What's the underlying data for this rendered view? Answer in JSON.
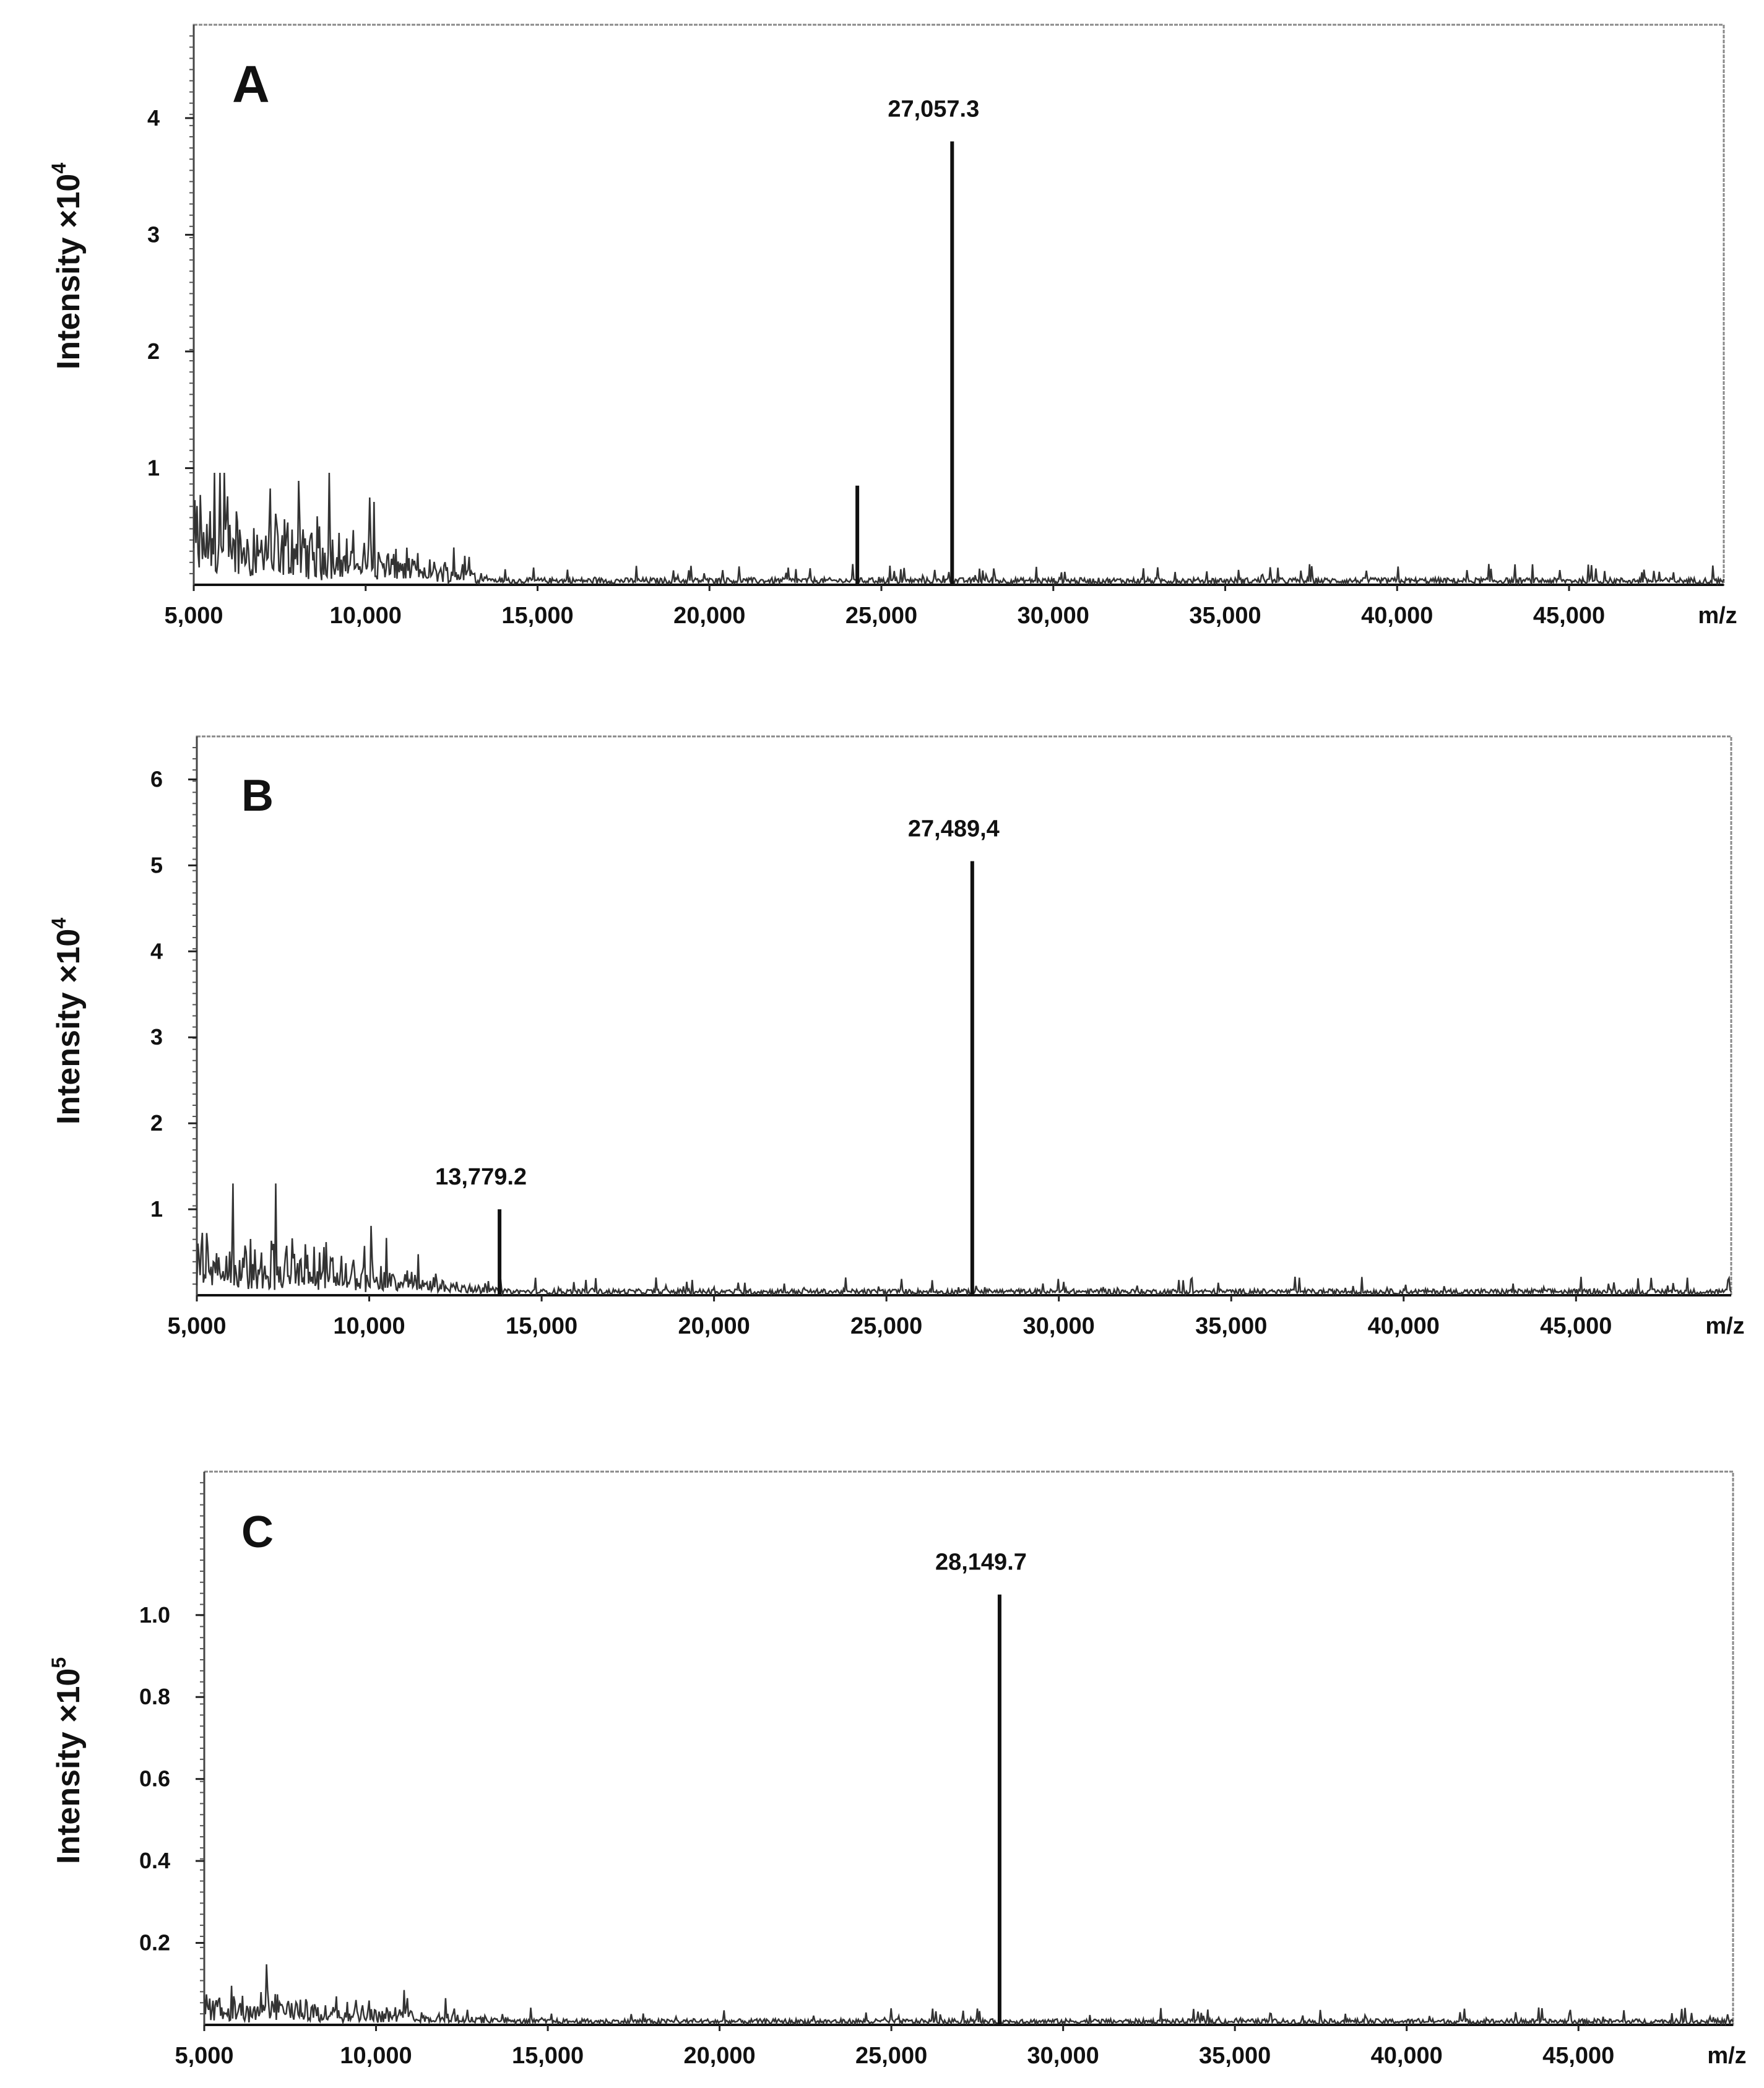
{
  "chart_data": [
    {
      "type": "line",
      "panel_label": "A",
      "ylabel": "Intensity ×10",
      "ylabel_exponent": "4",
      "xlabel": "m/z",
      "x_ticks": [
        "5,000",
        "10,000",
        "15,000",
        "20,000",
        "25,000",
        "30,000",
        "35,000",
        "40,000",
        "45,000"
      ],
      "y_ticks": [
        "1",
        "2",
        "3",
        "4"
      ],
      "xlim": [
        5000,
        49500
      ],
      "ylim": [
        0,
        4.8
      ],
      "grid": false,
      "peaks": [
        {
          "x": 27057.3,
          "y": 3.8,
          "label": "27,057.3"
        },
        {
          "x": 24300,
          "y": 0.85,
          "label": ""
        }
      ],
      "noise_level": 0.05,
      "low_mass_noise": 0.6
    },
    {
      "type": "line",
      "panel_label": "B",
      "ylabel": "Intensity ×10",
      "ylabel_exponent": "4",
      "xlabel": "m/z",
      "x_ticks": [
        "5,000",
        "10,000",
        "15,000",
        "20,000",
        "25,000",
        "30,000",
        "35,000",
        "40,000",
        "45,000"
      ],
      "y_ticks": [
        "1",
        "2",
        "3",
        "4",
        "5",
        "6"
      ],
      "xlim": [
        5000,
        49500
      ],
      "ylim": [
        0,
        6.5
      ],
      "grid": false,
      "peaks": [
        {
          "x": 27489.4,
          "y": 5.05,
          "label": "27,489,4"
        },
        {
          "x": 13779.2,
          "y": 1.0,
          "label": "13,779.2"
        }
      ],
      "noise_level": 0.06,
      "low_mass_noise": 0.55
    },
    {
      "type": "line",
      "panel_label": "C",
      "ylabel": "Intensity ×10",
      "ylabel_exponent": "5",
      "xlabel": "m/z",
      "x_ticks": [
        "5,000",
        "10,000",
        "15,000",
        "20,000",
        "25,000",
        "30,000",
        "35,000",
        "40,000",
        "45,000"
      ],
      "y_ticks": [
        "0.2",
        "0.4",
        "0.6",
        "0.8",
        "1.0"
      ],
      "xlim": [
        5000,
        49500
      ],
      "ylim": [
        0,
        1.35
      ],
      "grid": false,
      "peaks": [
        {
          "x": 28149.7,
          "y": 1.05,
          "label": "28,149.7"
        }
      ],
      "noise_level": 0.012,
      "low_mass_noise": 0.06
    }
  ]
}
